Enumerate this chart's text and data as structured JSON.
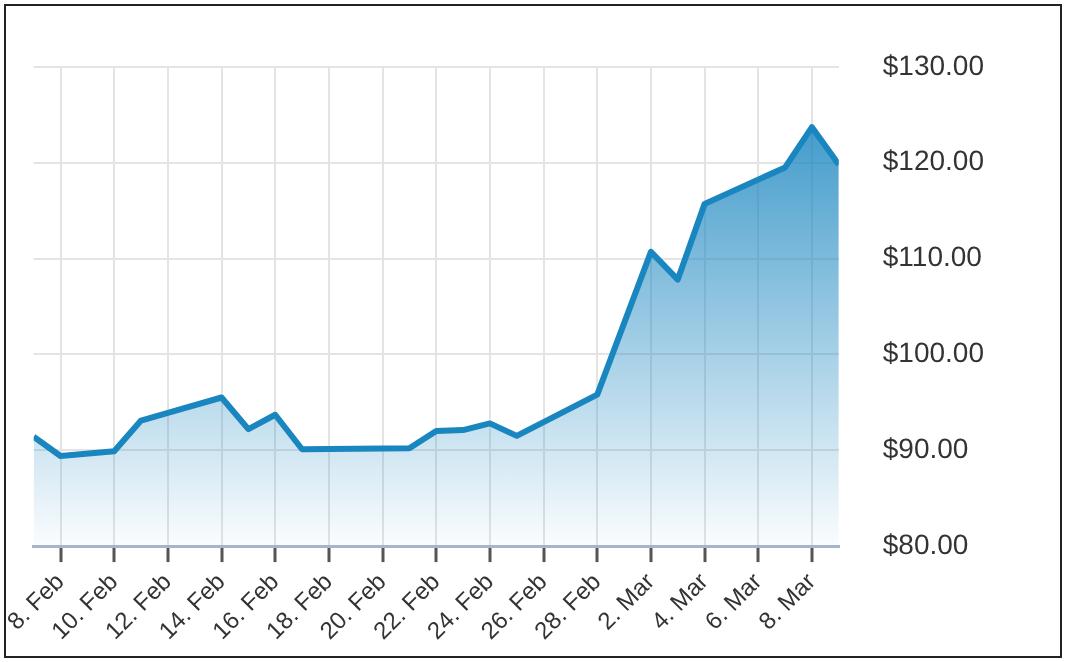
{
  "chart_data": {
    "type": "area",
    "x": [
      "--02-07",
      "--02-08",
      "--02-10",
      "--02-11",
      "--02-12",
      "--02-14",
      "--02-15",
      "--02-16",
      "--02-17",
      "--02-21",
      "--02-22",
      "--02-23",
      "--02-24",
      "--02-25",
      "--02-28",
      "--03-02",
      "--03-03",
      "--03-04",
      "--03-07",
      "--03-08",
      "--03-09"
    ],
    "series": [
      {
        "color": "#1a86c0",
        "values": [
          91.4,
          89.4,
          89.9,
          93.1,
          93.9,
          95.5,
          92.2,
          93.7,
          90.1,
          90.2,
          92.0,
          92.1,
          92.8,
          91.5,
          95.8,
          110.7,
          107.8,
          115.7,
          119.5,
          123.7,
          119.8
        ]
      }
    ],
    "xlim": [
      "--02-07",
      "--03-09"
    ],
    "xticks": [
      {
        "value": "--02-08",
        "label": "8. Feb"
      },
      {
        "value": "--02-10",
        "label": "10. Feb"
      },
      {
        "value": "--02-12",
        "label": "12. Feb"
      },
      {
        "value": "--02-14",
        "label": "14. Feb"
      },
      {
        "value": "--02-16",
        "label": "16. Feb"
      },
      {
        "value": "--02-18",
        "label": "18. Feb"
      },
      {
        "value": "--02-20",
        "label": "20. Feb"
      },
      {
        "value": "--02-22",
        "label": "22. Feb"
      },
      {
        "value": "--02-24",
        "label": "24. Feb"
      },
      {
        "value": "--02-26",
        "label": "26. Feb"
      },
      {
        "value": "--02-28",
        "label": "28. Feb"
      },
      {
        "value": "--03-02",
        "label": "2. Mar"
      },
      {
        "value": "--03-04",
        "label": "4. Mar"
      },
      {
        "value": "--03-06",
        "label": "6. Mar"
      },
      {
        "value": "--03-08",
        "label": "8. Mar"
      }
    ],
    "ylim": [
      80,
      130
    ],
    "yticks": [
      {
        "value": 80,
        "label": "$80.00"
      },
      {
        "value": 90,
        "label": "$90.00"
      },
      {
        "value": 100,
        "label": "$100.00"
      },
      {
        "value": 110,
        "label": "$110.00"
      },
      {
        "value": 120,
        "label": "$120.00"
      },
      {
        "value": 130,
        "label": "$130.00"
      }
    ],
    "grid": true,
    "legend": false,
    "marker": "none",
    "line_style": "solid"
  }
}
